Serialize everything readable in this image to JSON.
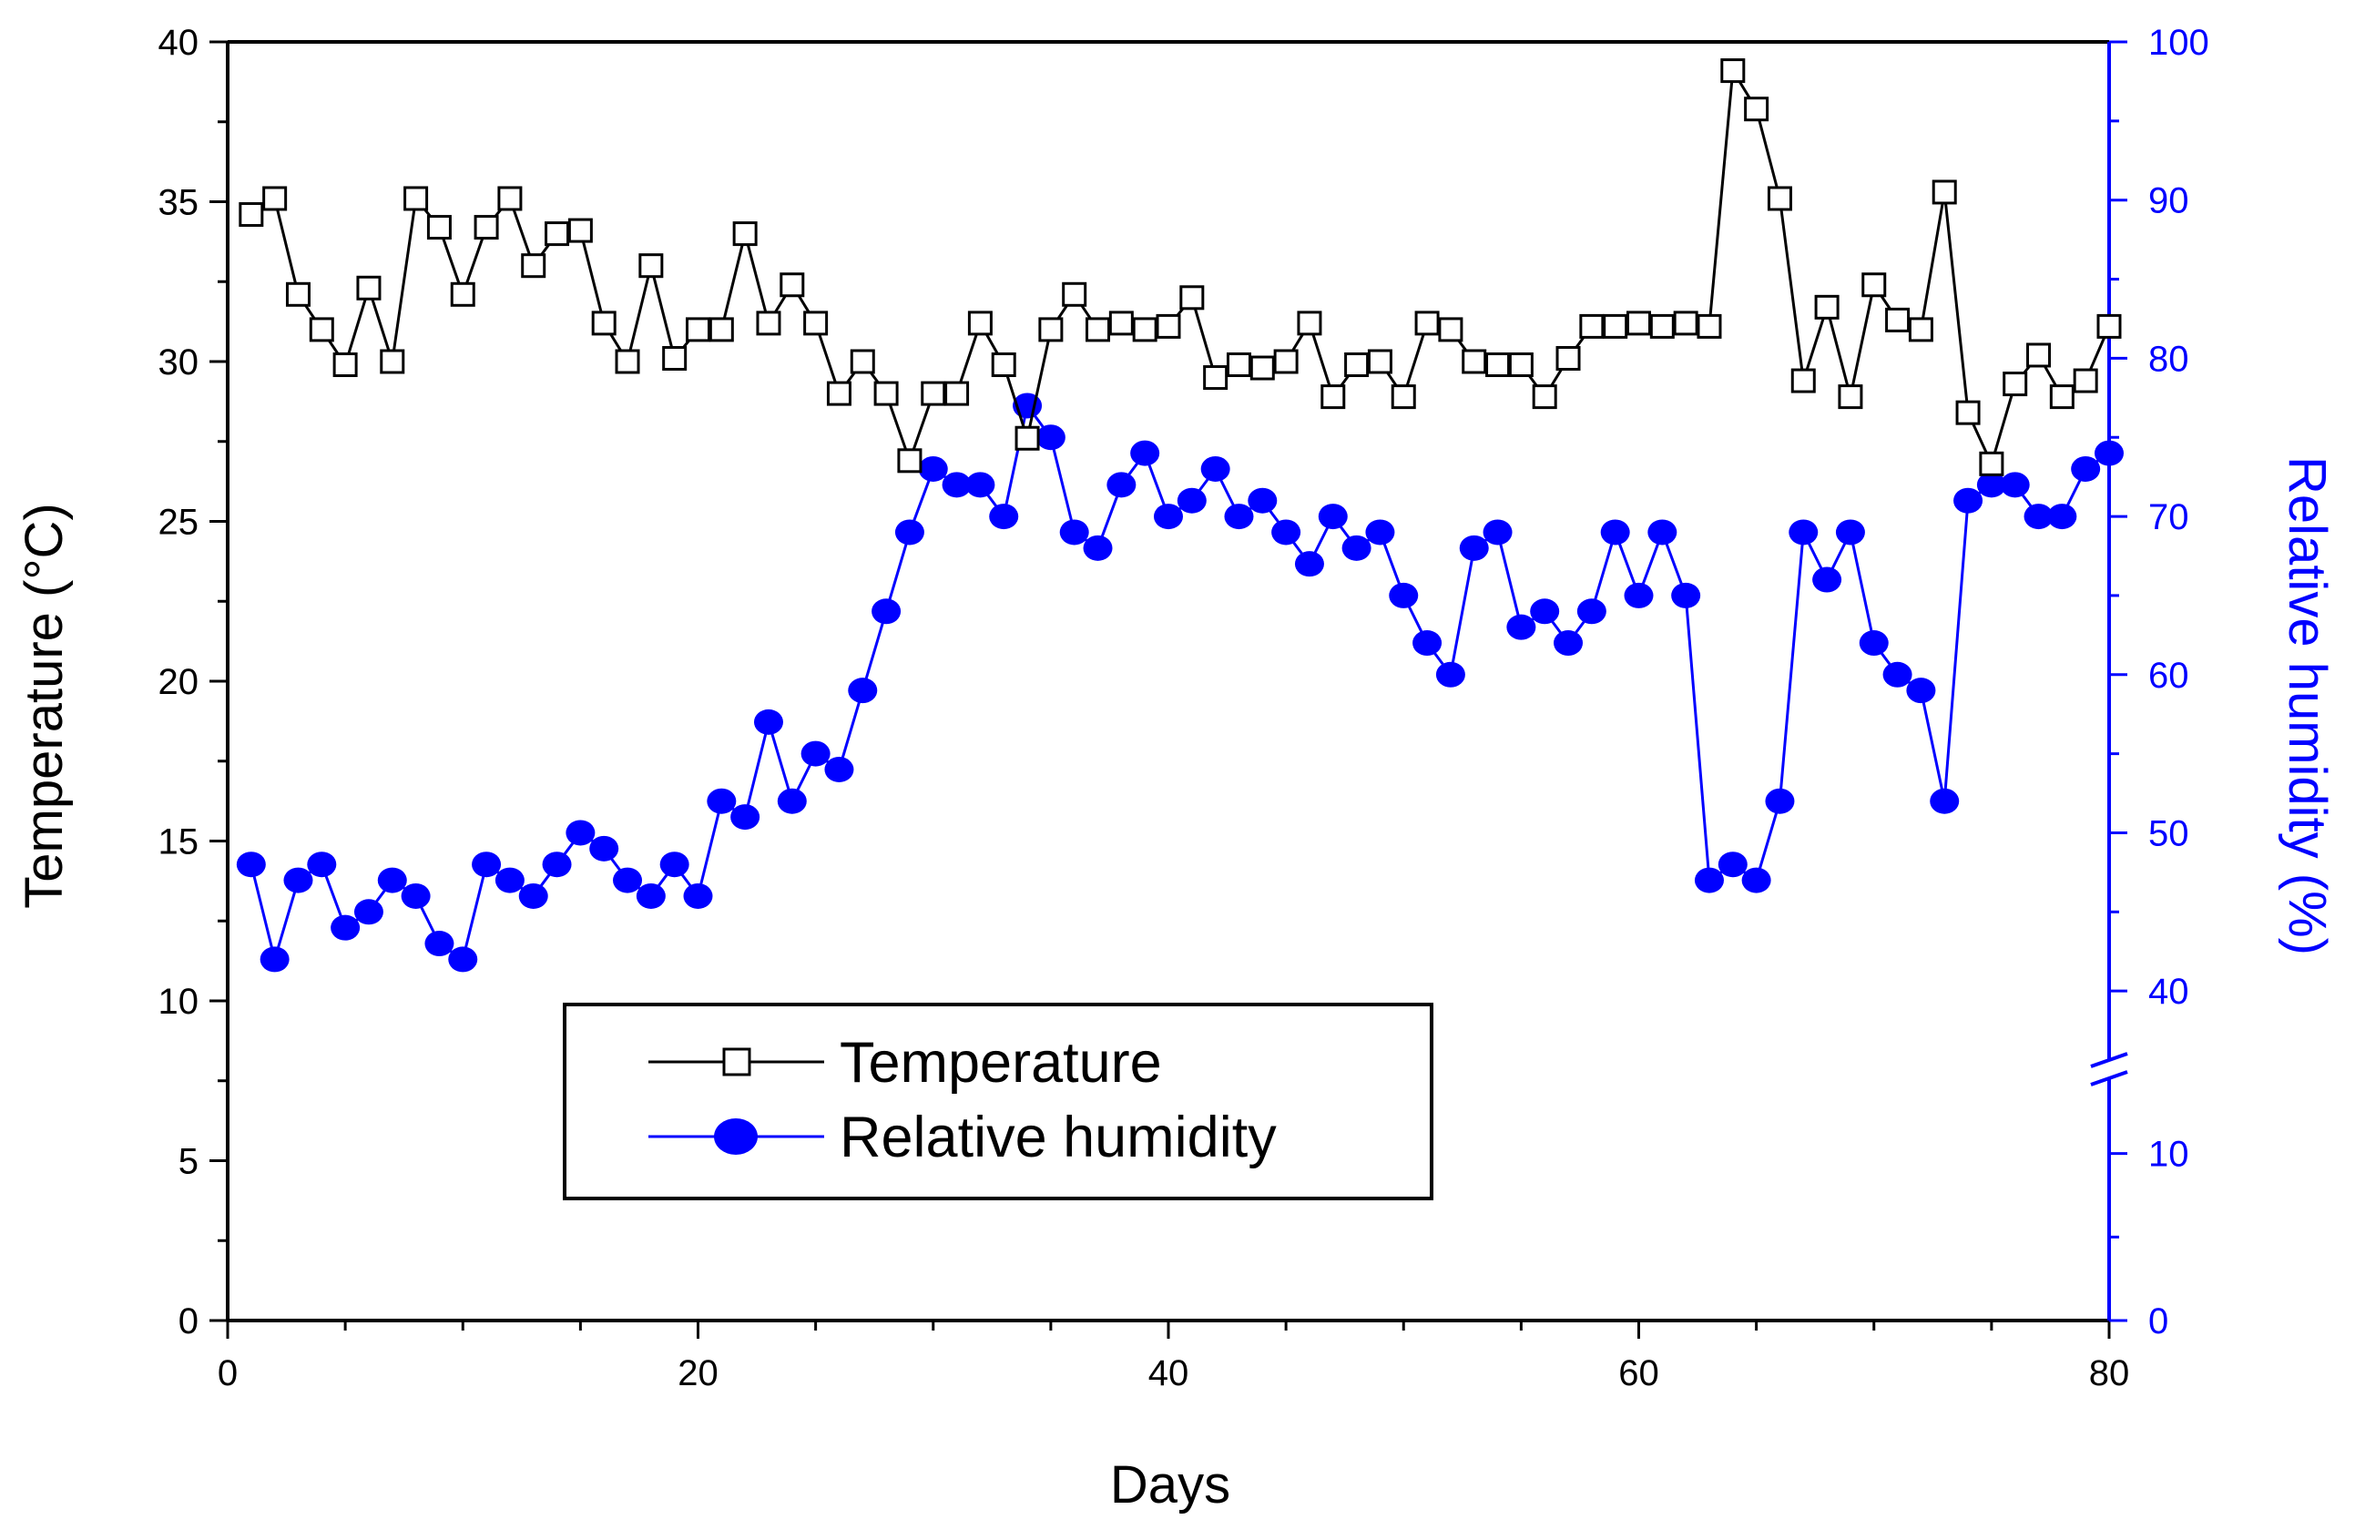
{
  "chart_data": {
    "type": "line",
    "xlabel": "Days",
    "ylabel_left": "Temperature (°C)",
    "ylabel_right": "Relative humidity (%)",
    "xlim": [
      0,
      80
    ],
    "ylim_left": [
      0,
      40
    ],
    "ylim_right_lower": [
      0,
      15
    ],
    "ylim_right_upper": [
      35,
      100
    ],
    "x_ticks": [
      0,
      20,
      40,
      60,
      80
    ],
    "y_ticks_left": [
      0,
      5,
      10,
      15,
      20,
      25,
      30,
      35,
      40
    ],
    "y_ticks_right_lower": [
      0,
      10
    ],
    "y_ticks_right_upper": [
      40,
      50,
      60,
      70,
      80,
      90,
      100
    ],
    "colors": {
      "temperature": "#000000",
      "humidity": "#0000ff",
      "right_axis": "#0000ff"
    },
    "legend_position": "lower-center",
    "series": [
      {
        "name": "Temperature",
        "marker": "open-square",
        "x": [
          1,
          2,
          3,
          4,
          5,
          6,
          7,
          8,
          9,
          10,
          11,
          12,
          13,
          14,
          15,
          16,
          17,
          18,
          19,
          20,
          21,
          22,
          23,
          24,
          25,
          26,
          27,
          28,
          29,
          30,
          31,
          32,
          33,
          34,
          35,
          36,
          37,
          38,
          39,
          40,
          41,
          42,
          43,
          44,
          45,
          46,
          47,
          48,
          49,
          50,
          51,
          52,
          53,
          54,
          55,
          56,
          57,
          58,
          59,
          60,
          61,
          62,
          63,
          64,
          65,
          66,
          67,
          68,
          69,
          70,
          71,
          72,
          73,
          74,
          75,
          76,
          77,
          78,
          79,
          80
        ],
        "values": [
          34.6,
          35.1,
          32.1,
          31.0,
          29.9,
          32.3,
          30.0,
          35.1,
          34.2,
          32.1,
          34.2,
          35.1,
          33.0,
          34.0,
          34.1,
          31.2,
          30.0,
          33.0,
          30.1,
          31.0,
          31.0,
          34.0,
          31.2,
          32.4,
          31.2,
          29.0,
          30.0,
          29.0,
          26.9,
          29.0,
          29.0,
          31.2,
          29.9,
          27.6,
          31.0,
          32.1,
          31.0,
          31.2,
          31.0,
          31.1,
          32.0,
          29.5,
          29.9,
          29.8,
          30.0,
          31.2,
          28.9,
          29.9,
          30.0,
          28.9,
          31.2,
          31.0,
          30.0,
          29.9,
          29.9,
          28.9,
          30.1,
          31.1,
          31.1,
          31.2,
          31.1,
          31.2,
          31.1,
          39.1,
          37.9,
          35.1,
          29.4,
          31.7,
          28.9,
          32.4,
          31.3,
          31.0,
          35.3,
          28.4,
          26.8,
          29.3,
          30.2,
          28.9,
          29.4,
          31.1
        ]
      },
      {
        "name": "Relative humidity",
        "marker": "filled-circle",
        "x": [
          1,
          2,
          3,
          4,
          5,
          6,
          7,
          8,
          9,
          10,
          11,
          12,
          13,
          14,
          15,
          16,
          17,
          18,
          19,
          20,
          21,
          22,
          23,
          24,
          25,
          26,
          27,
          28,
          29,
          30,
          31,
          32,
          33,
          34,
          35,
          36,
          37,
          38,
          39,
          40,
          41,
          42,
          43,
          44,
          45,
          46,
          47,
          48,
          49,
          50,
          51,
          52,
          53,
          54,
          55,
          56,
          57,
          58,
          59,
          60,
          61,
          62,
          63,
          64,
          65,
          66,
          67,
          68,
          69,
          70,
          71,
          72,
          73,
          74,
          75,
          76,
          77,
          78,
          79,
          80
        ],
        "values": [
          48,
          42,
          47,
          48,
          44,
          45,
          47,
          46,
          43,
          42,
          48,
          47,
          46,
          48,
          50,
          49,
          47,
          46,
          48,
          46,
          52,
          51,
          57,
          52,
          55,
          54,
          59,
          64,
          69,
          73,
          72,
          72,
          70,
          77,
          75,
          69,
          68,
          72,
          74,
          70,
          71,
          73,
          70,
          71,
          69,
          67,
          70,
          68,
          69,
          65,
          62,
          60,
          68,
          69,
          63,
          64,
          62,
          64,
          69,
          65,
          69,
          65,
          47,
          48,
          47,
          52,
          69,
          66,
          69,
          62,
          60,
          59,
          52,
          71,
          72,
          72,
          70,
          70,
          73,
          74
        ]
      }
    ],
    "legend": [
      {
        "label": "Temperature"
      },
      {
        "label": "Relative humidity"
      }
    ]
  }
}
